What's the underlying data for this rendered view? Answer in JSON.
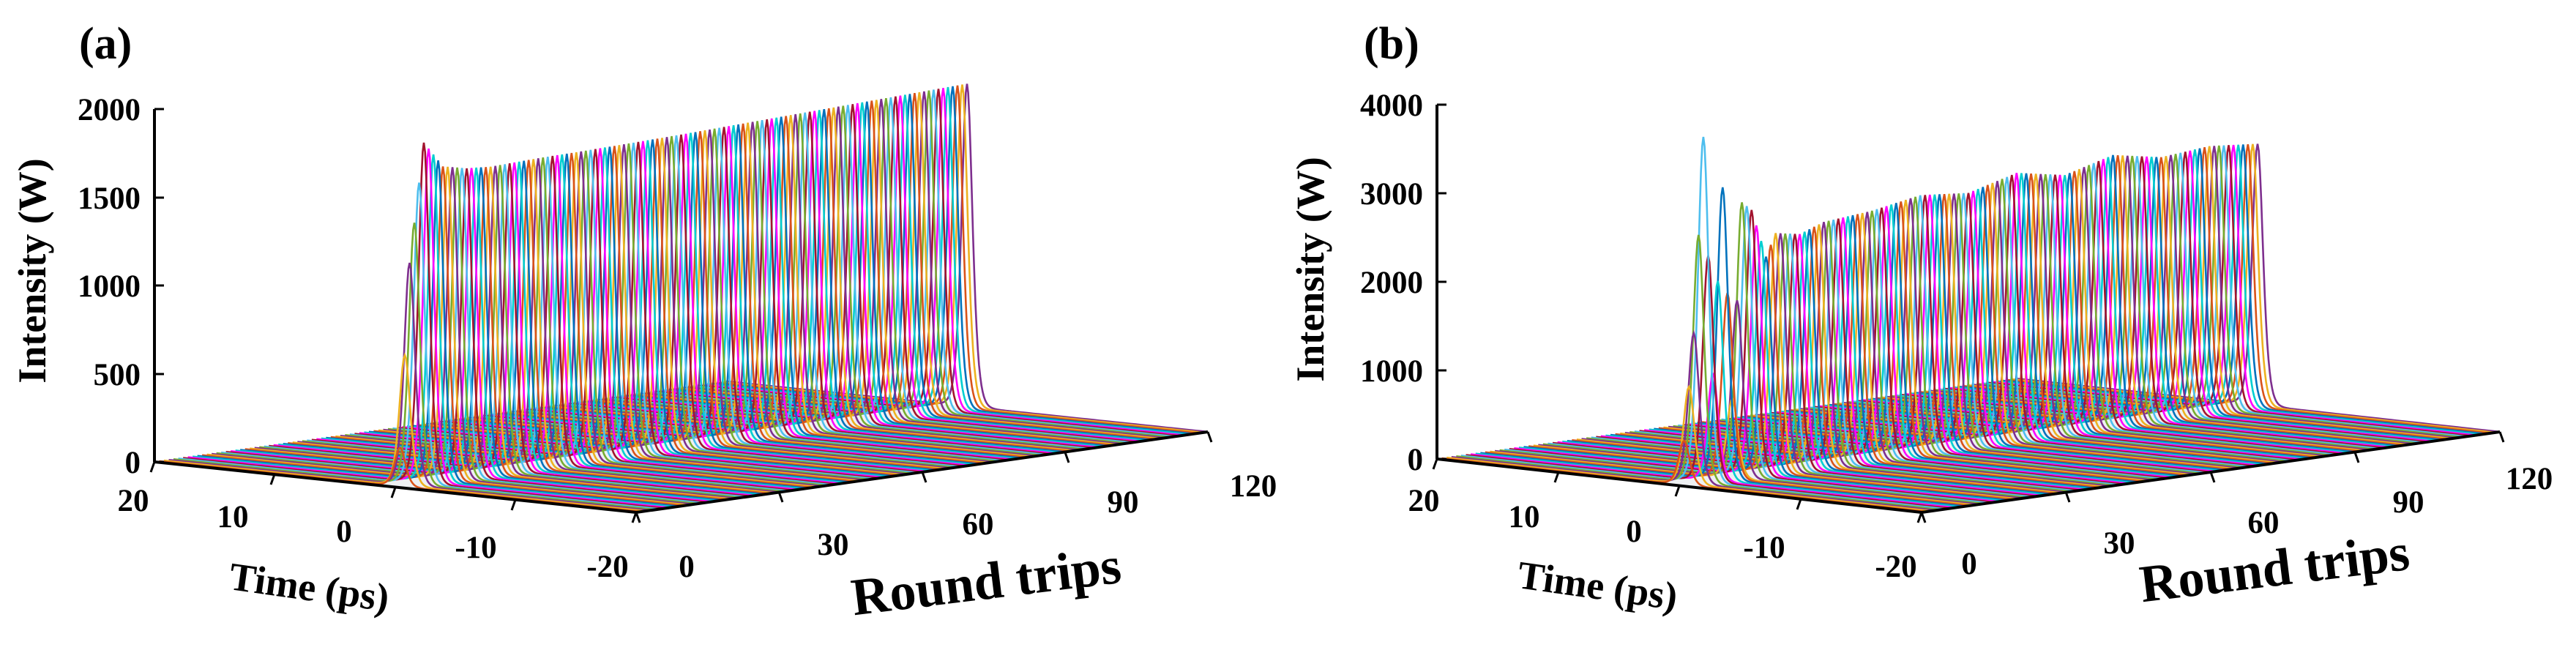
{
  "chart_data": [
    {
      "panel_label": "(a)",
      "type": "line",
      "zlabel": "Intensity (W)",
      "zticks": [
        "0",
        "500",
        "1000",
        "1500",
        "2000"
      ],
      "zlim": [
        0,
        2000
      ],
      "xlabel": "Time (ps)",
      "xticks": [
        "20",
        "10",
        "0",
        "-10",
        "-20"
      ],
      "xlim": [
        20,
        -20
      ],
      "ylabel": "Round trips",
      "yticks": [
        "0",
        "30",
        "60",
        "90",
        "120"
      ],
      "ylim": [
        0,
        120
      ],
      "series_count": 120,
      "pulse_center_ps": 0,
      "pulse_width_ps": 0.6,
      "peak_profile": {
        "round_trip": [
          1,
          3,
          6,
          10,
          15,
          20,
          30,
          40,
          50,
          60,
          70,
          80,
          90,
          100,
          110,
          120
        ],
        "peak_W": [
          220,
          1260,
          1930,
          1780,
          1750,
          1740,
          1750,
          1755,
          1762,
          1770,
          1780,
          1790,
          1800,
          1810,
          1820,
          1830
        ]
      }
    },
    {
      "panel_label": "(b)",
      "type": "line",
      "zlabel": "Intensity (W)",
      "zticks": [
        "0",
        "1000",
        "2000",
        "3000",
        "4000"
      ],
      "zlim": [
        0,
        4000
      ],
      "xlabel": "Time (ps)",
      "xticks": [
        "20",
        "10",
        "0",
        "-10",
        "-20"
      ],
      "xlim": [
        20,
        -20
      ],
      "ylabel": "Round trips",
      "yticks": [
        "0",
        "30",
        "60",
        "90",
        "120"
      ],
      "ylim": [
        0,
        120
      ],
      "series_count": 120,
      "pulse_center_ps": 0,
      "pulse_width_ps": 0.6,
      "peak_profile": {
        "round_trip": [
          1,
          3,
          5,
          7,
          9,
          11,
          13,
          15,
          18,
          20,
          25,
          30,
          40,
          50,
          60,
          70,
          80,
          90,
          100,
          110,
          120
        ],
        "peak_W": [
          500,
          1700,
          3900,
          1200,
          3300,
          900,
          3100,
          3000,
          2450,
          2700,
          2650,
          2750,
          2800,
          2900,
          2850,
          3000,
          2900,
          3050,
          2950,
          3000,
          2950
        ]
      }
    }
  ],
  "colors": [
    "#0072BD",
    "#D95319",
    "#EDB120",
    "#7E2F8E",
    "#77AC30",
    "#4DBEEE",
    "#A2142F",
    "#FF00FF",
    "#00CED1"
  ]
}
